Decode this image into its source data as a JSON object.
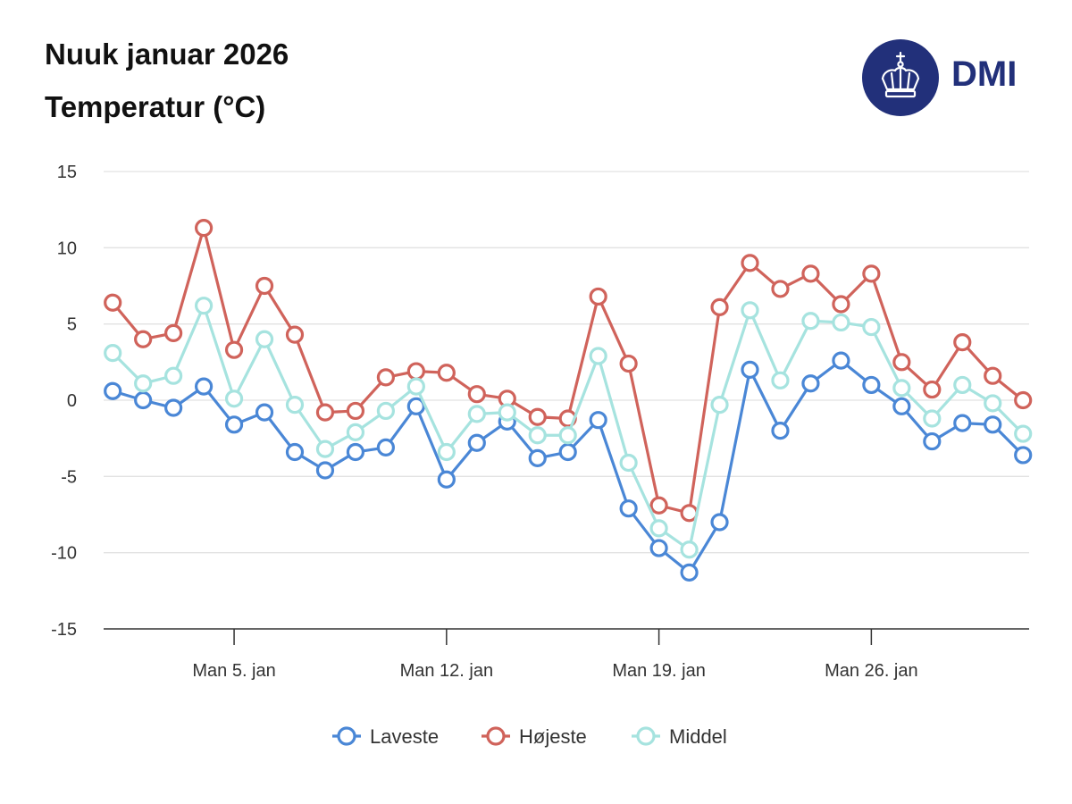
{
  "header": {
    "title": "Nuuk januar 2026",
    "subtitle": "Temperatur (°C)",
    "logo_text": "DMI"
  },
  "chart_data": {
    "type": "line",
    "title": "Nuuk januar 2026",
    "ylabel": "Temperatur (°C)",
    "xlabel": "",
    "x": [
      1,
      2,
      3,
      4,
      5,
      6,
      7,
      8,
      9,
      10,
      11,
      12,
      13,
      14,
      15,
      16,
      17,
      18,
      19,
      20,
      21,
      22,
      23,
      24,
      25,
      26,
      27,
      28,
      29,
      30,
      31
    ],
    "xlim": [
      0.7,
      31.2
    ],
    "ylim": [
      -15,
      15
    ],
    "yticks": [
      15,
      10,
      5,
      0,
      -5,
      -10,
      -15
    ],
    "ytick_labels": [
      "15",
      "10",
      "5",
      "0",
      "-5",
      "-10",
      "-15"
    ],
    "xticks": [
      5,
      12,
      19,
      26
    ],
    "xtick_labels": [
      "Man 5. jan",
      "Man 12. jan",
      "Man 19. jan",
      "Man 26. jan"
    ],
    "grid": true,
    "legend_position": "bottom-center",
    "series": [
      {
        "name": "Laveste",
        "color": "#4a87d6",
        "values": [
          0.6,
          0,
          -0.5,
          0.9,
          -1.6,
          -0.8,
          -3.4,
          -4.6,
          -3.4,
          -3.1,
          -0.4,
          -5.2,
          -2.8,
          -1.4,
          -3.8,
          -3.4,
          -1.3,
          -7.1,
          -9.7,
          -11.3,
          -8,
          2,
          -2,
          1.1,
          2.6,
          1,
          -0.4,
          -2.7,
          -1.5,
          -1.6,
          -3.6
        ]
      },
      {
        "name": "Højeste",
        "color": "#d0635b",
        "values": [
          6.4,
          4,
          4.4,
          11.3,
          3.3,
          7.5,
          4.3,
          -0.8,
          -0.7,
          1.5,
          1.9,
          1.8,
          0.4,
          0.1,
          -1.1,
          -1.2,
          6.8,
          2.4,
          -6.9,
          -7.4,
          6.1,
          9,
          7.3,
          8.3,
          6.3,
          8.3,
          2.5,
          0.7,
          3.8,
          1.6,
          0
        ]
      },
      {
        "name": "Middel",
        "color": "#a6e3df",
        "values": [
          3.1,
          1.1,
          1.6,
          6.2,
          0.1,
          4,
          -0.3,
          -3.2,
          -2.1,
          -0.7,
          0.9,
          -3.4,
          -0.9,
          -0.8,
          -2.3,
          -2.3,
          2.9,
          -4.1,
          -8.4,
          -9.8,
          -0.3,
          5.9,
          1.3,
          5.2,
          5.1,
          4.8,
          0.8,
          -1.2,
          1,
          -0.2,
          -2.2
        ]
      }
    ]
  }
}
